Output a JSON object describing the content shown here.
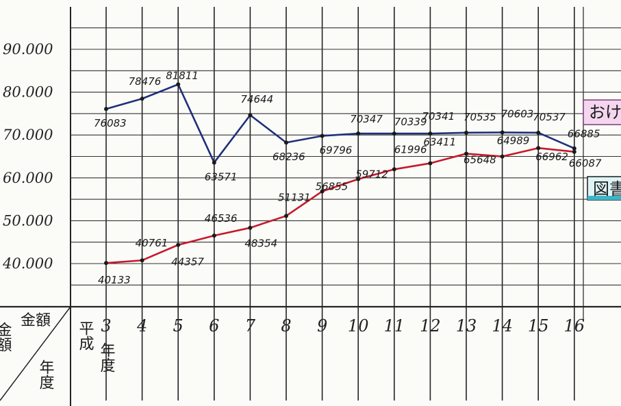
{
  "chart_data": {
    "type": "line",
    "categories": [
      "3",
      "4",
      "5",
      "6",
      "7",
      "8",
      "9",
      "10",
      "11",
      "12",
      "13",
      "14",
      "15",
      "16"
    ],
    "x_first_prefix": "平成",
    "x_first_suffix": "年",
    "x_unit_suffix": "度",
    "yticks": [
      "40.000",
      "50.000",
      "60.000",
      "70.000",
      "80.000",
      "90.000"
    ],
    "ytick_values": [
      40000,
      50000,
      60000,
      70000,
      80000,
      90000
    ],
    "ylim": [
      38000,
      92000
    ],
    "grid": true,
    "series": [
      {
        "key": "blue",
        "color": "#1f2f7a",
        "values": [
          76083,
          78476,
          81811,
          63571,
          74644,
          68236,
          69796,
          70347,
          70339,
          70341,
          70535,
          70603,
          70537,
          66885
        ],
        "labels": [
          "76083",
          "78476",
          "81811",
          "63571",
          "74644",
          "68236",
          "69796",
          "70347",
          "70339",
          "70341",
          "70535",
          "70603",
          "70537",
          "66885"
        ]
      },
      {
        "key": "red",
        "color": "#c41a2a",
        "values": [
          40133,
          40761,
          44357,
          46536,
          48354,
          51131,
          56855,
          59712,
          61996,
          63411,
          65648,
          64989,
          66962,
          66087
        ],
        "labels": [
          "40133",
          "40761",
          "44357",
          "46536",
          "48354",
          "51131",
          "56855",
          "59712",
          "61996",
          "63411",
          "65648",
          "64989",
          "66962",
          "66087"
        ]
      }
    ],
    "corner_header": {
      "top_right": "金額",
      "bottom_right": "年度",
      "left": "金額"
    },
    "legend": {
      "item1": "おけ",
      "item2": "図書"
    }
  }
}
